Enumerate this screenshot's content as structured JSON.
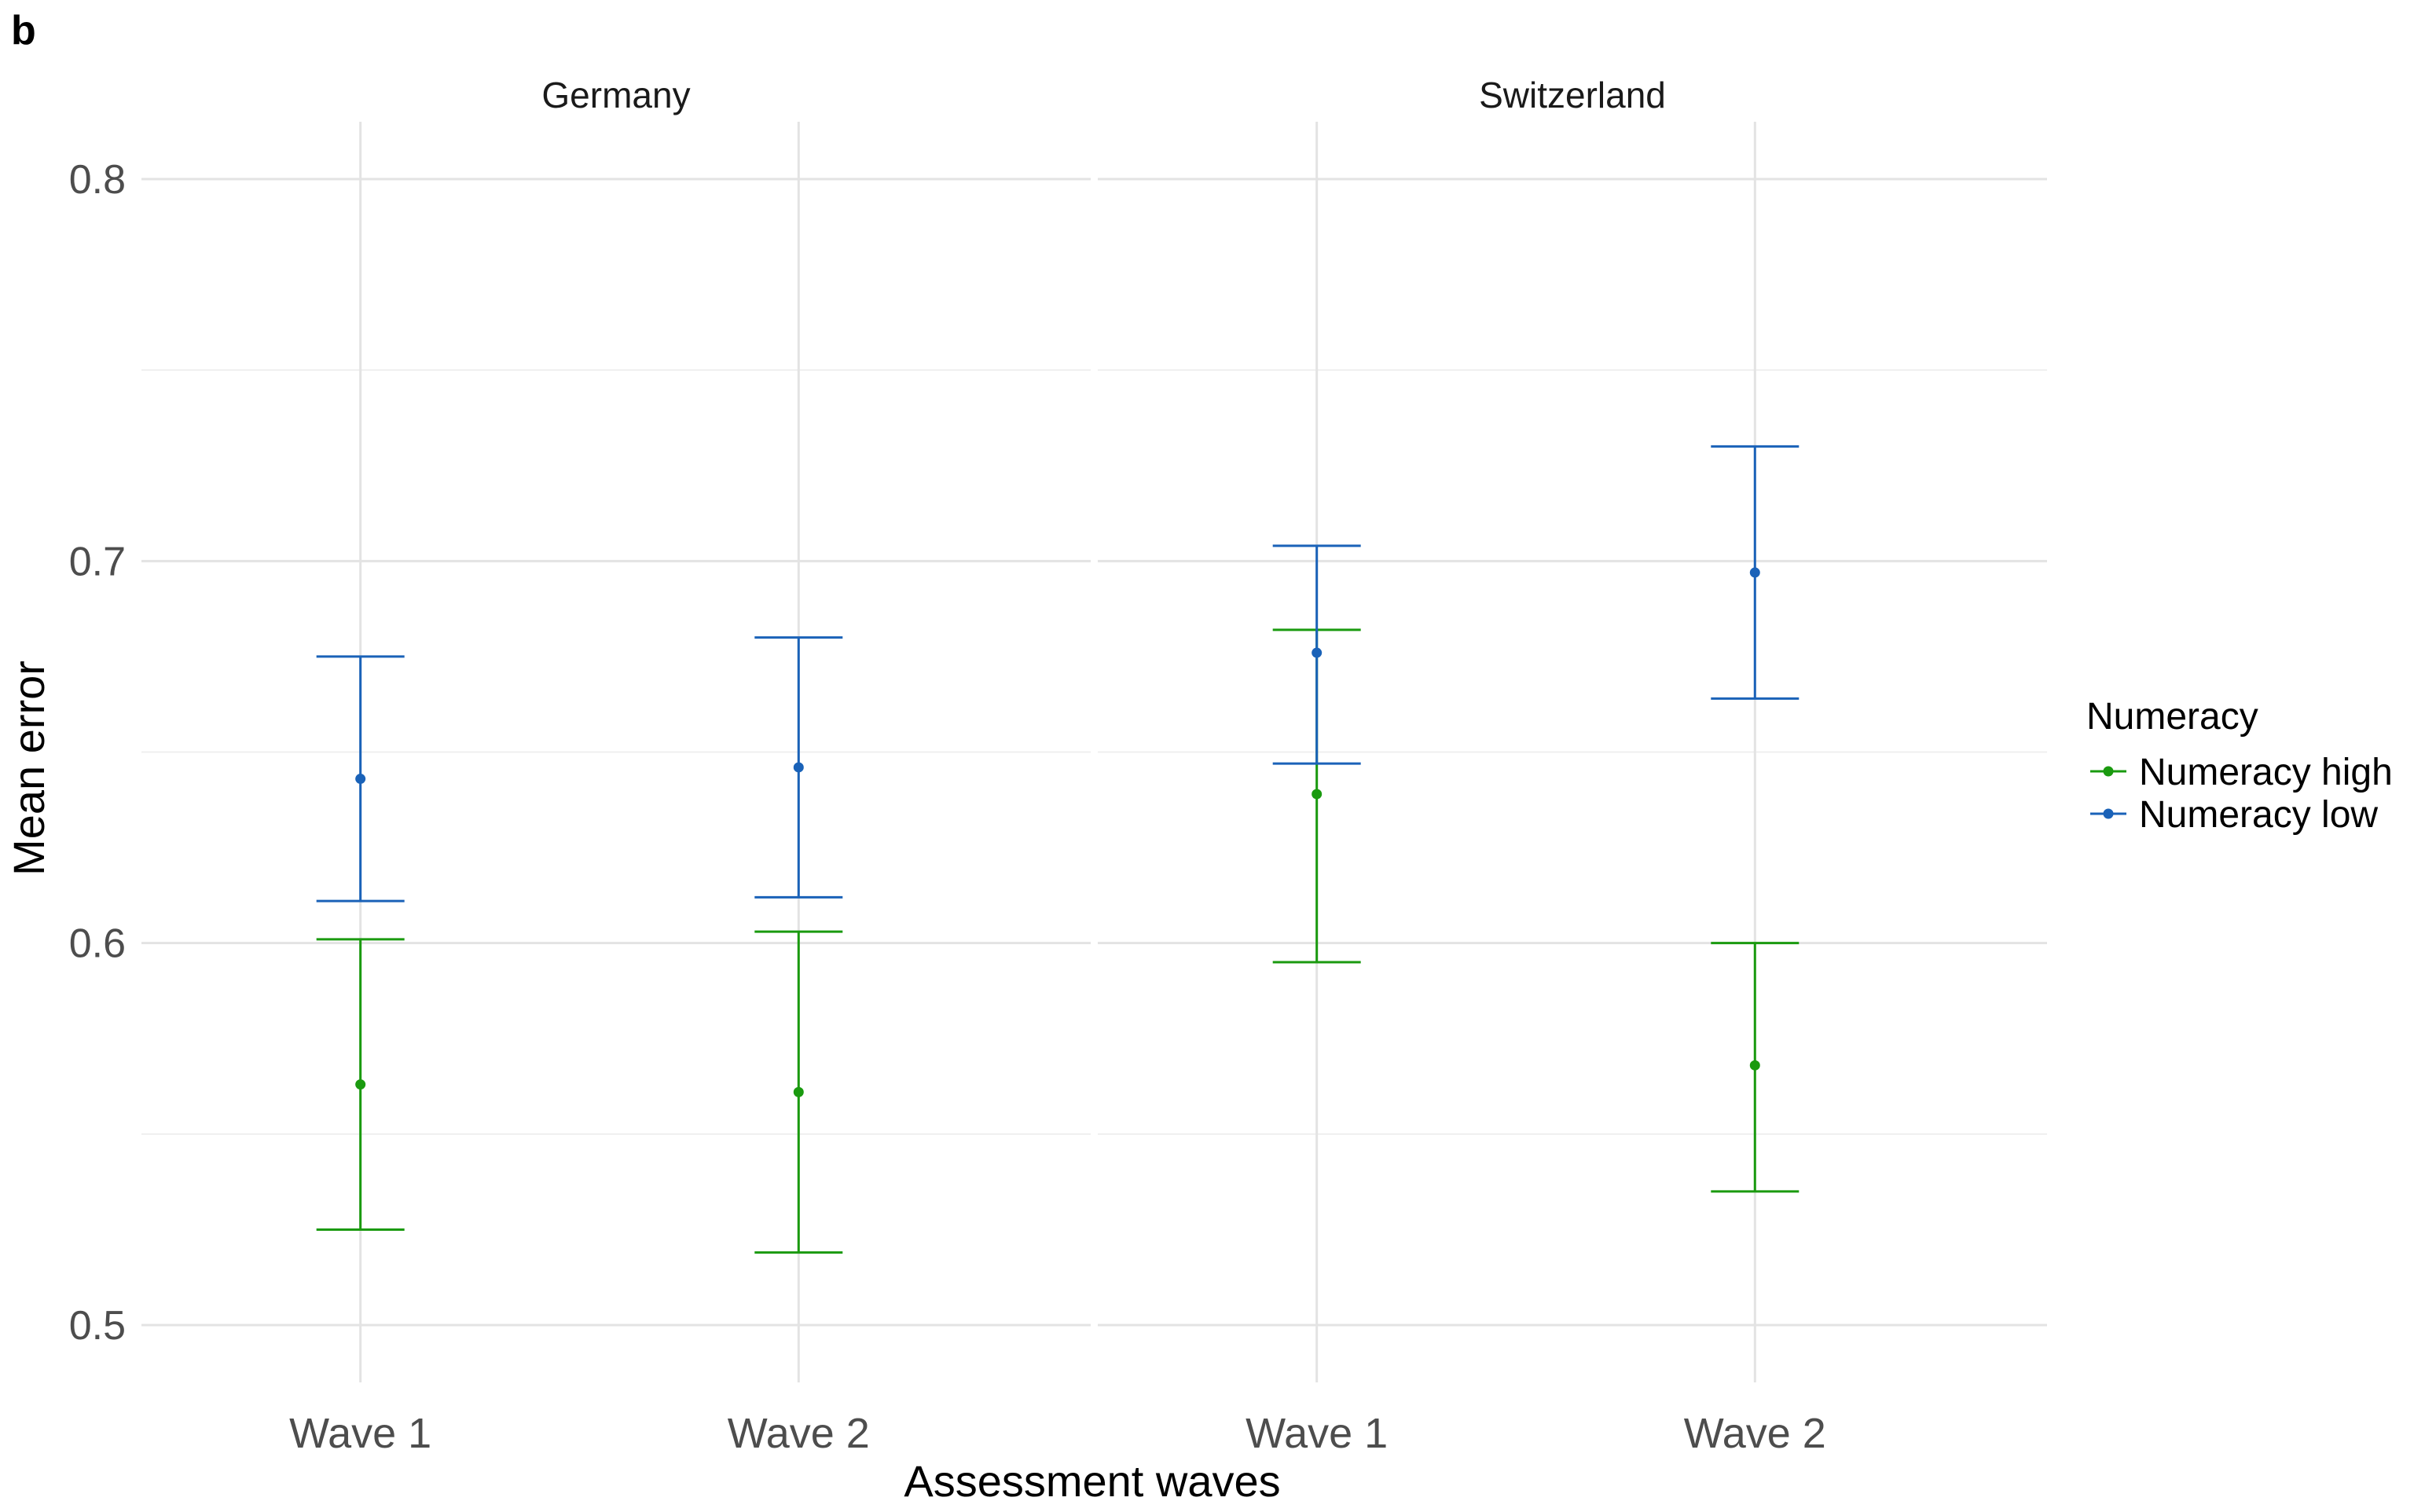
{
  "panel_label": "b",
  "chart_data": {
    "type": "errorbar",
    "xlabel": "Assessment waves",
    "ylabel": "Mean error",
    "ylim": [
      0.485,
      0.815
    ],
    "y_ticks": [
      0.5,
      0.6,
      0.7,
      0.8
    ],
    "y_tick_labels": [
      "0.5",
      "0.6",
      "0.7",
      "0.8"
    ],
    "y_minor_ticks": [
      0.55,
      0.65,
      0.75
    ],
    "categories": [
      "Wave 1",
      "Wave 2"
    ],
    "grid": true,
    "legend": {
      "title": "Numeracy",
      "position": "right"
    },
    "facets": [
      "Germany",
      "Switzerland"
    ],
    "series": [
      {
        "name": "Numeracy high",
        "color": "#1a9a0f",
        "points": [
          {
            "facet": "Germany",
            "x": "Wave 1",
            "y": 0.563,
            "ymin": 0.525,
            "ymax": 0.601
          },
          {
            "facet": "Germany",
            "x": "Wave 2",
            "y": 0.561,
            "ymin": 0.519,
            "ymax": 0.603
          },
          {
            "facet": "Switzerland",
            "x": "Wave 1",
            "y": 0.639,
            "ymin": 0.595,
            "ymax": 0.682
          },
          {
            "facet": "Switzerland",
            "x": "Wave 2",
            "y": 0.568,
            "ymin": 0.535,
            "ymax": 0.6
          }
        ]
      },
      {
        "name": "Numeracy low",
        "color": "#1a62b8",
        "points": [
          {
            "facet": "Germany",
            "x": "Wave 1",
            "y": 0.643,
            "ymin": 0.611,
            "ymax": 0.675
          },
          {
            "facet": "Germany",
            "x": "Wave 2",
            "y": 0.646,
            "ymin": 0.612,
            "ymax": 0.68
          },
          {
            "facet": "Switzerland",
            "x": "Wave 1",
            "y": 0.676,
            "ymin": 0.647,
            "ymax": 0.704
          },
          {
            "facet": "Switzerland",
            "x": "Wave 2",
            "y": 0.697,
            "ymin": 0.664,
            "ymax": 0.73
          }
        ]
      }
    ]
  }
}
